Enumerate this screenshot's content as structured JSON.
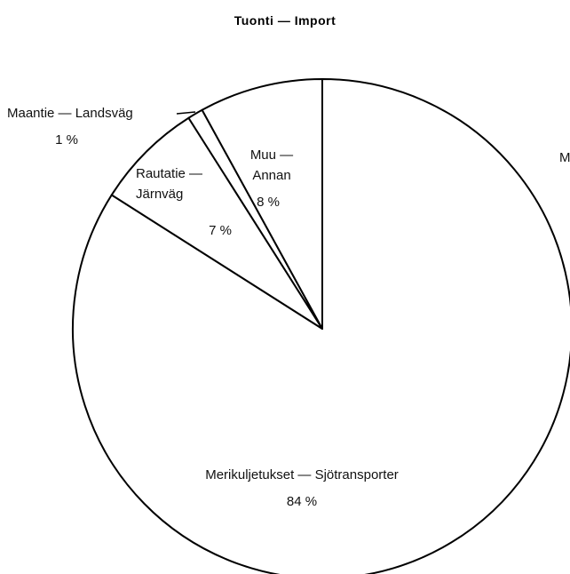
{
  "chart_data": {
    "type": "pie",
    "title": "Tuonti — Import",
    "categories": [
      "Muu — Annan",
      "Maantie — Landsväg",
      "Rautatie — Järnväg",
      "Merikuljetukset — Sjötransporter"
    ],
    "values": [
      8,
      1,
      7,
      84
    ],
    "value_labels": [
      "8 %",
      "1 %",
      "7 %",
      "84 %"
    ],
    "color": "#ffffff",
    "annotation": "M"
  }
}
